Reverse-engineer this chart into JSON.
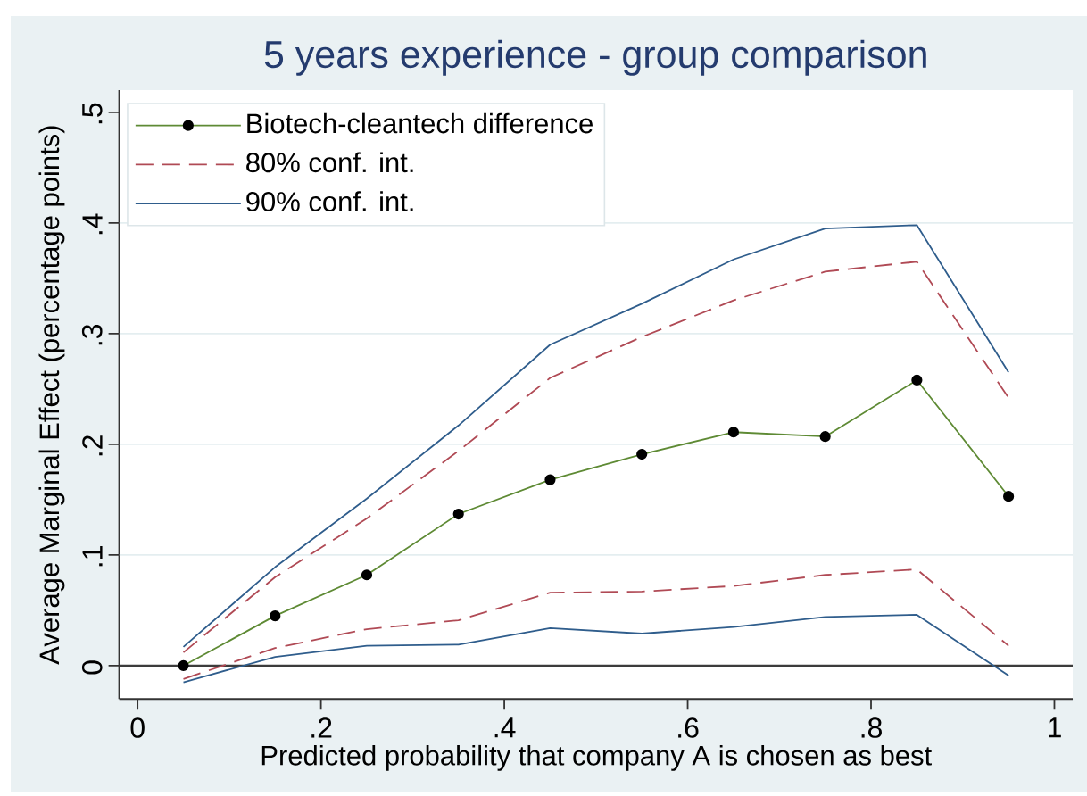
{
  "chart_data": {
    "type": "line",
    "title": "5 years experience - group comparison",
    "xlabel": "Predicted probability that company A is chosen as best",
    "ylabel": "Average Marginal Effect (percentage points)",
    "x": [
      0.05,
      0.15,
      0.25,
      0.35,
      0.45,
      0.55,
      0.65,
      0.75,
      0.85,
      0.95
    ],
    "series": [
      {
        "name": "Biotech-cleantech difference",
        "color": "#5e8a34",
        "marker": "circle",
        "values": [
          0,
          0.045,
          0.082,
          0.137,
          0.168,
          0.191,
          0.211,
          0.207,
          0.258,
          0.153
        ]
      },
      {
        "name": "80% conf. int.",
        "color": "#b04a55",
        "line_style": "dashed",
        "values": [
          0.012,
          0.08,
          0.133,
          0.194,
          0.26,
          0.297,
          0.33,
          0.356,
          0.365,
          0.242
        ]
      },
      {
        "color": "#b04a55",
        "line_style": "dashed",
        "values": [
          -0.012,
          0.016,
          0.033,
          0.041,
          0.066,
          0.067,
          0.072,
          0.082,
          0.087,
          0.018
        ]
      },
      {
        "name": "90% conf. int.",
        "color": "#2f5d8c",
        "values": [
          0.017,
          0.089,
          0.151,
          0.217,
          0.29,
          0.327,
          0.367,
          0.395,
          0.398,
          0.265
        ]
      },
      {
        "color": "#2f5d8c",
        "values": [
          -0.015,
          0.008,
          0.018,
          0.019,
          0.034,
          0.029,
          0.035,
          0.044,
          0.046,
          -0.009
        ]
      }
    ],
    "xlim": [
      -0.02,
      1.02
    ],
    "ylim": [
      -0.03,
      0.52
    ],
    "xticks": [
      0,
      {
        "value": 0.2,
        "label": ".2"
      },
      {
        "value": 0.4,
        "label": ".4"
      },
      {
        "value": 0.6,
        "label": ".6"
      },
      {
        "value": 0.8,
        "label": ".8"
      },
      1
    ],
    "yticks": [
      0,
      {
        "value": 0.1,
        "label": ".1"
      },
      {
        "value": 0.2,
        "label": ".2"
      },
      {
        "value": 0.3,
        "label": ".3"
      },
      {
        "value": 0.4,
        "label": ".4"
      },
      {
        "value": 0.5,
        "label": ".5"
      }
    ],
    "ref_lines": [
      {
        "axis": "y",
        "value": 0,
        "color": "#3c3c3c"
      }
    ],
    "grid": "y",
    "legend": "top left"
  }
}
